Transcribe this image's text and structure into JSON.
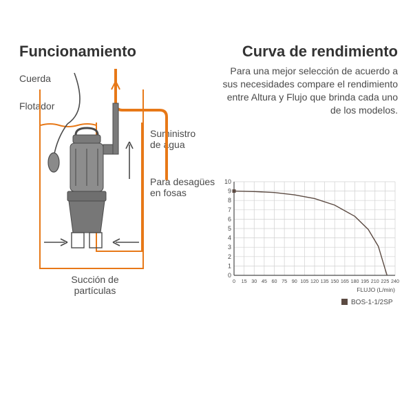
{
  "left": {
    "title": "Funcionamiento",
    "labels": {
      "cuerda": "Cuerda",
      "flotador": "Flotador",
      "suministro": "Suministro\nde agua",
      "desagues": "Para desagües\nen fosas",
      "succion": "Succión de\npartículas"
    },
    "colors": {
      "outline": "#e77817",
      "pump_fill": "#6d6d6d",
      "pump_stroke": "#4a4a4a",
      "text": "#4a4a4a",
      "water": "#e77817"
    }
  },
  "right": {
    "title": "Curva de rendimiento",
    "description": "Para una mejor selección de acuerdo a sus necesidades compare el rendimiento entre Altura y Flujo que brinda cada uno de los modelos.",
    "chart": {
      "type": "line",
      "x_ticks": [
        0,
        15,
        30,
        45,
        60,
        75,
        90,
        105,
        120,
        135,
        150,
        165,
        180,
        195,
        210,
        225,
        240
      ],
      "y_ticks": [
        0,
        1,
        2,
        3,
        4,
        5,
        6,
        7,
        8,
        9,
        10
      ],
      "xlim": [
        0,
        240
      ],
      "ylim": [
        0,
        10
      ],
      "x_axis_label": "FLUJO (L/min)",
      "series": {
        "name": "BOS-1-1/2SP",
        "color": "#5b4a42",
        "line_width": 1.4,
        "points": [
          [
            0,
            9.0
          ],
          [
            30,
            8.95
          ],
          [
            60,
            8.85
          ],
          [
            90,
            8.6
          ],
          [
            120,
            8.2
          ],
          [
            150,
            7.5
          ],
          [
            180,
            6.3
          ],
          [
            200,
            4.9
          ],
          [
            215,
            3.1
          ],
          [
            225,
            0.7
          ],
          [
            228,
            0
          ]
        ]
      },
      "grid_color": "#d0d0d0",
      "axis_color": "#4a4a4a",
      "bg": "#ffffff"
    },
    "legend_label": "BOS-1-1/2SP"
  }
}
